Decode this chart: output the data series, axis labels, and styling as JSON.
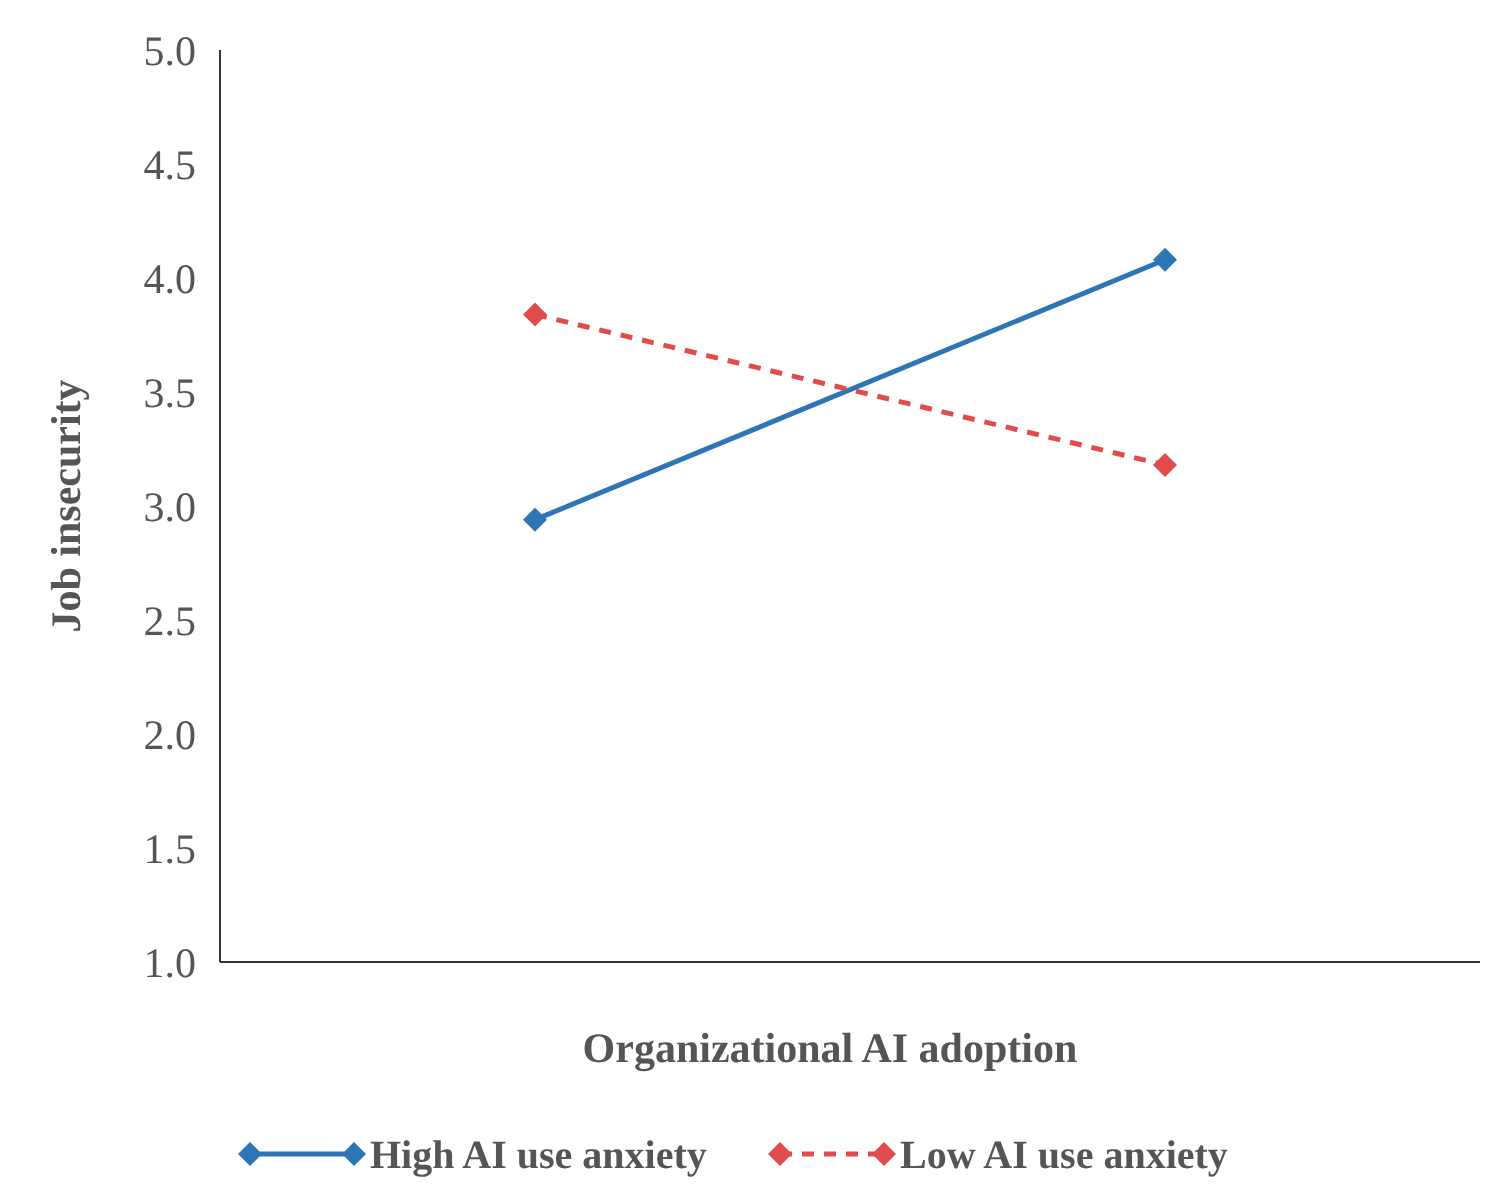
{
  "chart_data": {
    "type": "line",
    "xlabel": "Organizational AI adoption",
    "ylabel": "Job insecurity",
    "categories": [
      null,
      null
    ],
    "series": [
      {
        "name": "High AI use anxiety",
        "color": "#2e75b6",
        "values": [
          2.94,
          4.08
        ],
        "line_style": "solid"
      },
      {
        "name": "Low AI use anxiety",
        "color": "#e04c4c",
        "values": [
          3.84,
          3.18
        ],
        "line_style": "dashed"
      }
    ],
    "ylim": [
      1,
      5
    ],
    "yticks": [
      {
        "value": 1,
        "label": "1.0"
      },
      {
        "value": 1.5,
        "label": "1.5"
      },
      {
        "value": 2,
        "label": "2.0"
      },
      {
        "value": 2.5,
        "label": "2.5"
      },
      {
        "value": 3,
        "label": "3.0"
      },
      {
        "value": 3.5,
        "label": "3.5"
      },
      {
        "value": 4,
        "label": "4.0"
      },
      {
        "value": 4.5,
        "label": "4.5"
      },
      {
        "value": 5,
        "label": "5.0"
      }
    ],
    "grid": false,
    "legend": "bottom",
    "marker": "diamond"
  }
}
